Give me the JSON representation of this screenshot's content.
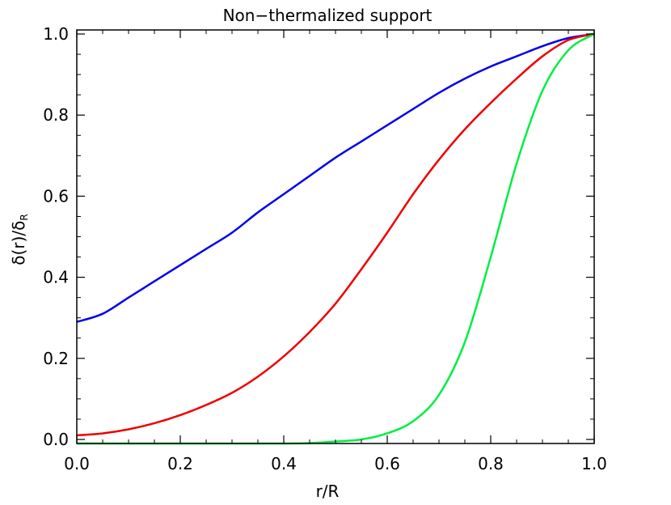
{
  "chart_data": {
    "type": "line",
    "title": "Non−thermalized support",
    "xlabel": "r/R",
    "ylabel": "δ(r)/δR",
    "ylabel_main": "δ(r)/δ",
    "ylabel_sub": "R",
    "xlim": [
      0.0,
      1.0
    ],
    "ylim": [
      -0.01,
      1.01
    ],
    "xticks": [
      0.0,
      0.2,
      0.4,
      0.6,
      0.8,
      1.0
    ],
    "yticks": [
      0.0,
      0.2,
      0.4,
      0.6,
      0.8,
      1.0
    ],
    "xtick_labels": [
      "0.0",
      "0.2",
      "0.4",
      "0.6",
      "0.8",
      "1.0"
    ],
    "ytick_labels": [
      "0.0",
      "0.2",
      "0.4",
      "0.6",
      "0.8",
      "1.0"
    ],
    "grid": false,
    "legend": "none",
    "x": [
      0.0,
      0.05,
      0.1,
      0.15,
      0.2,
      0.25,
      0.3,
      0.35,
      0.4,
      0.45,
      0.5,
      0.55,
      0.6,
      0.65,
      0.7,
      0.75,
      0.8,
      0.85,
      0.9,
      0.95,
      1.0
    ],
    "series": [
      {
        "color": "#0000ee",
        "values": [
          0.29,
          0.31,
          0.35,
          0.39,
          0.43,
          0.47,
          0.51,
          0.56,
          0.605,
          0.65,
          0.695,
          0.735,
          0.775,
          0.815,
          0.855,
          0.89,
          0.92,
          0.945,
          0.97,
          0.99,
          1.0
        ]
      },
      {
        "color": "#ee0000",
        "values": [
          0.01,
          0.015,
          0.025,
          0.04,
          0.06,
          0.085,
          0.115,
          0.155,
          0.205,
          0.265,
          0.335,
          0.42,
          0.51,
          0.605,
          0.69,
          0.765,
          0.83,
          0.89,
          0.945,
          0.985,
          1.0
        ]
      },
      {
        "color": "#00ee44",
        "values": [
          -0.01,
          -0.01,
          -0.01,
          -0.01,
          -0.01,
          -0.01,
          -0.01,
          -0.01,
          -0.01,
          -0.009,
          -0.005,
          0.0,
          0.015,
          0.045,
          0.11,
          0.24,
          0.45,
          0.68,
          0.86,
          0.96,
          1.0
        ]
      }
    ]
  }
}
